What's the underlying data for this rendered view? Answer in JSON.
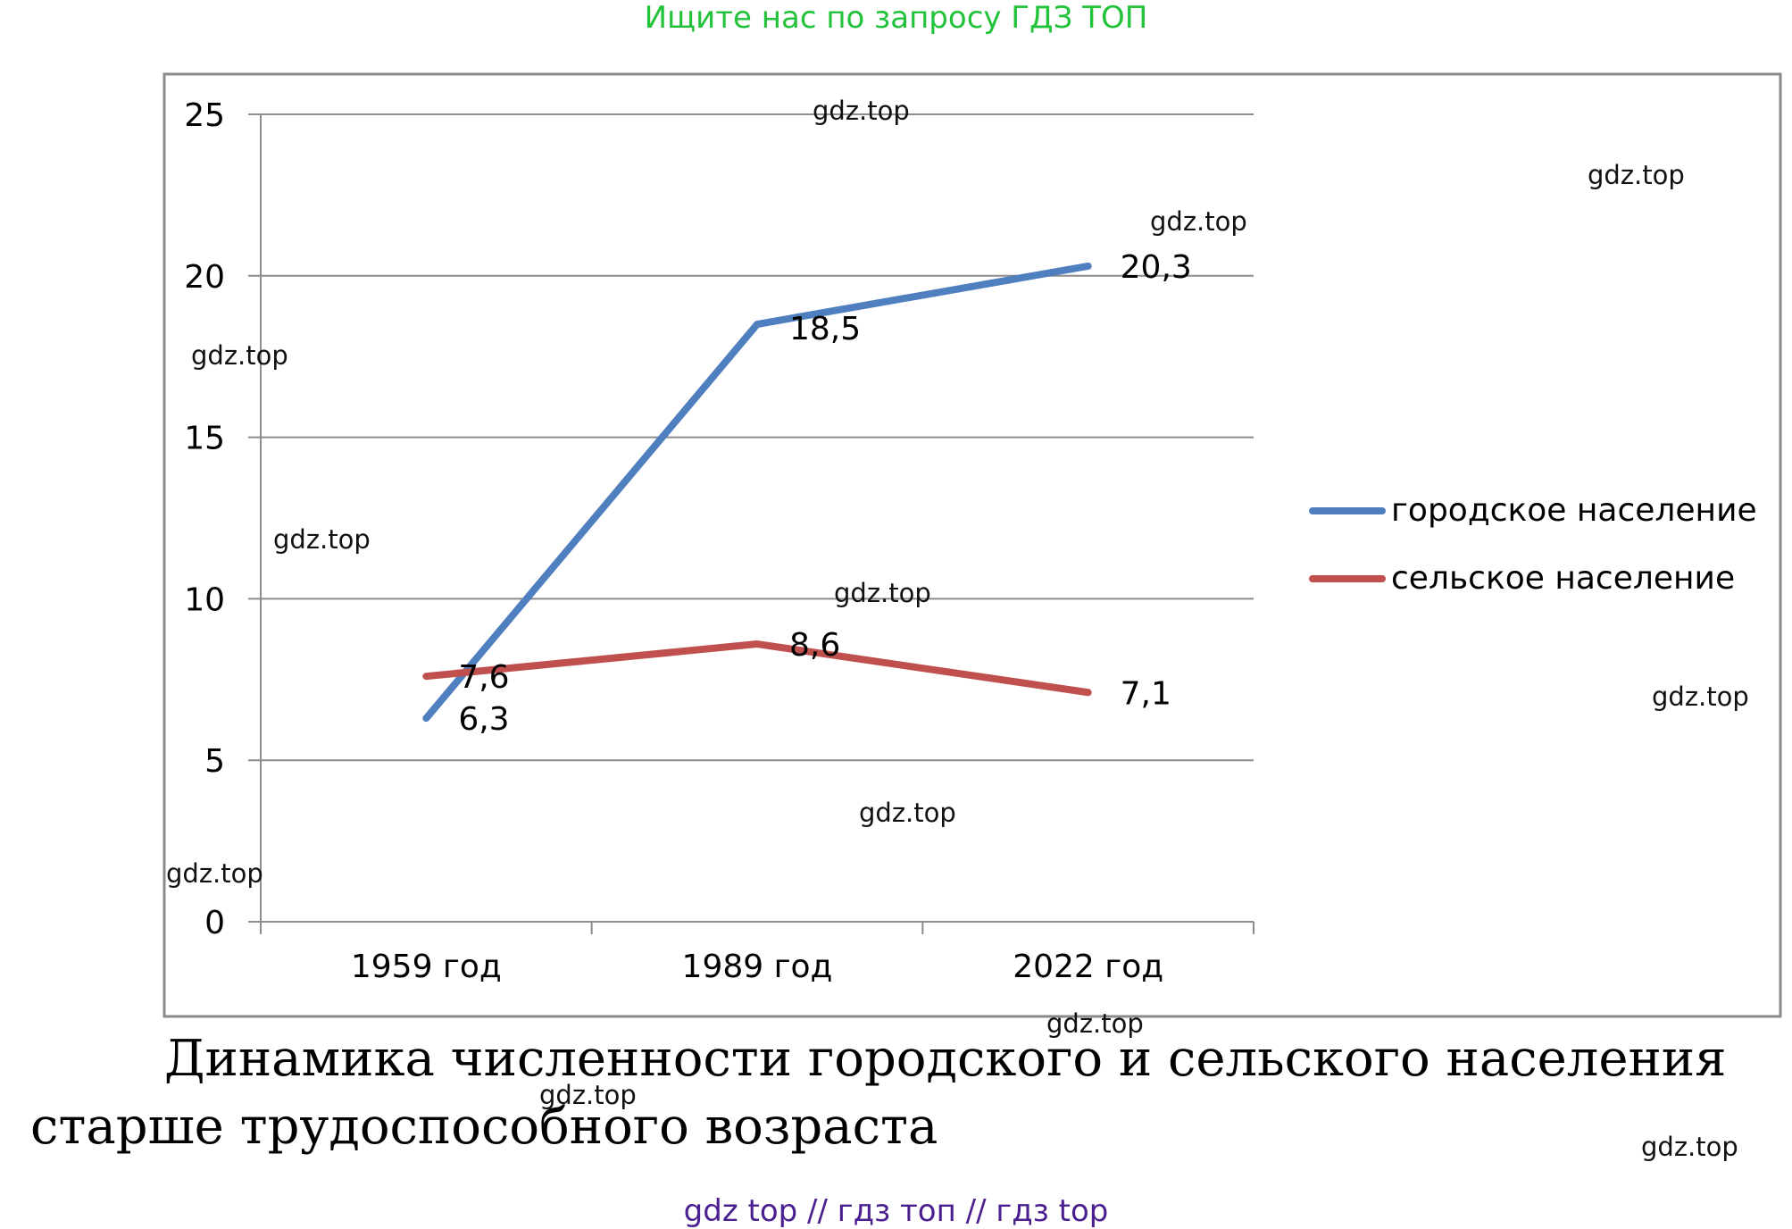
{
  "header_text": "Ищите нас по запросу ГДЗ ТОП",
  "caption": {
    "line1": "Динамика численности городского и сельского населения",
    "line2": "старше трудоспособного возраста"
  },
  "footer_text": "gdz top  //  гдз топ  //  гдз top",
  "watermark": "gdz.top",
  "chart_data": {
    "type": "line",
    "title": "",
    "xlabel": "",
    "ylabel": "",
    "categories": [
      "1959 год",
      "1989 год",
      "2022 год"
    ],
    "ylim": [
      0,
      25
    ],
    "yticks": [
      0,
      5,
      10,
      15,
      20,
      25
    ],
    "grid": true,
    "legend_position": "right",
    "series": [
      {
        "name": "городское население",
        "values": [
          6.3,
          18.5,
          20.3
        ],
        "labels": [
          "6,3",
          "18,5",
          "20,3"
        ],
        "color": "#4f7fbf"
      },
      {
        "name": "сельское население",
        "values": [
          7.6,
          8.6,
          7.1
        ],
        "labels": [
          "7,6",
          "8,6",
          "7,1"
        ],
        "color": "#c0504d"
      }
    ]
  }
}
